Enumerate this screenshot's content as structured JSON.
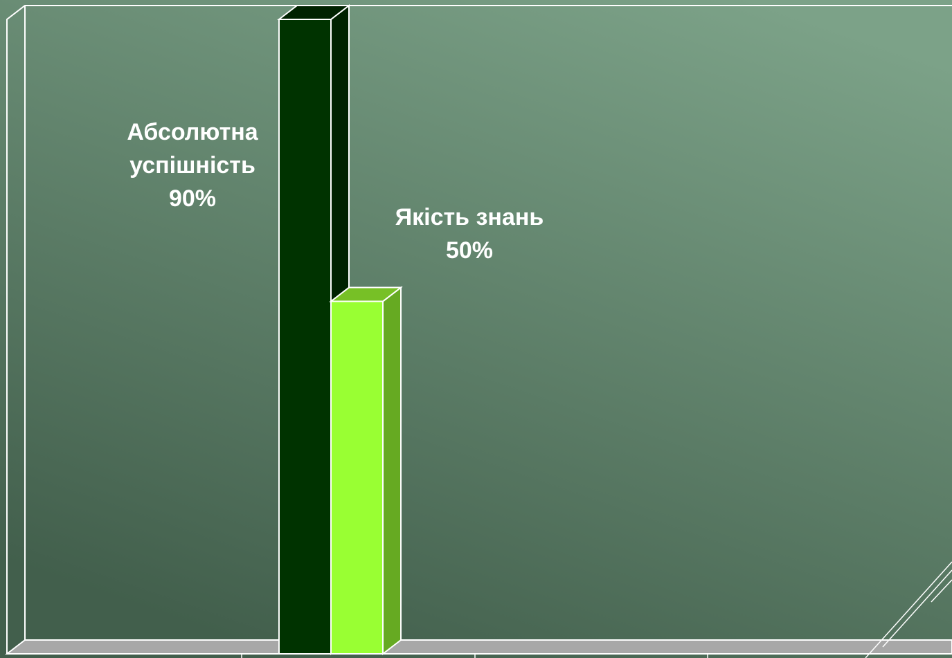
{
  "colors": {
    "background_top": "#7ca288",
    "background_bottom": "#425f4c",
    "wall_edge": "#ffffff",
    "floor": "#a8a8a8"
  },
  "chart_data": {
    "type": "bar",
    "style": "3d-clustered-column",
    "categories": [
      ""
    ],
    "ylim": [
      0,
      100
    ],
    "grid": false,
    "legend": "none",
    "series": [
      {
        "name": "Абсолютна успішність",
        "value": 90,
        "label_lines": [
          "Абсолютна",
          "успішність",
          "90%"
        ],
        "front_color": "#003300",
        "side_color": "#002200",
        "top_color": "#002200"
      },
      {
        "name": "Якість знань",
        "value": 50,
        "label_lines": [
          "Якість знань",
          "50%"
        ],
        "front_color": "#99ff33",
        "side_color": "#66aa22",
        "top_color": "#77c026"
      }
    ]
  }
}
